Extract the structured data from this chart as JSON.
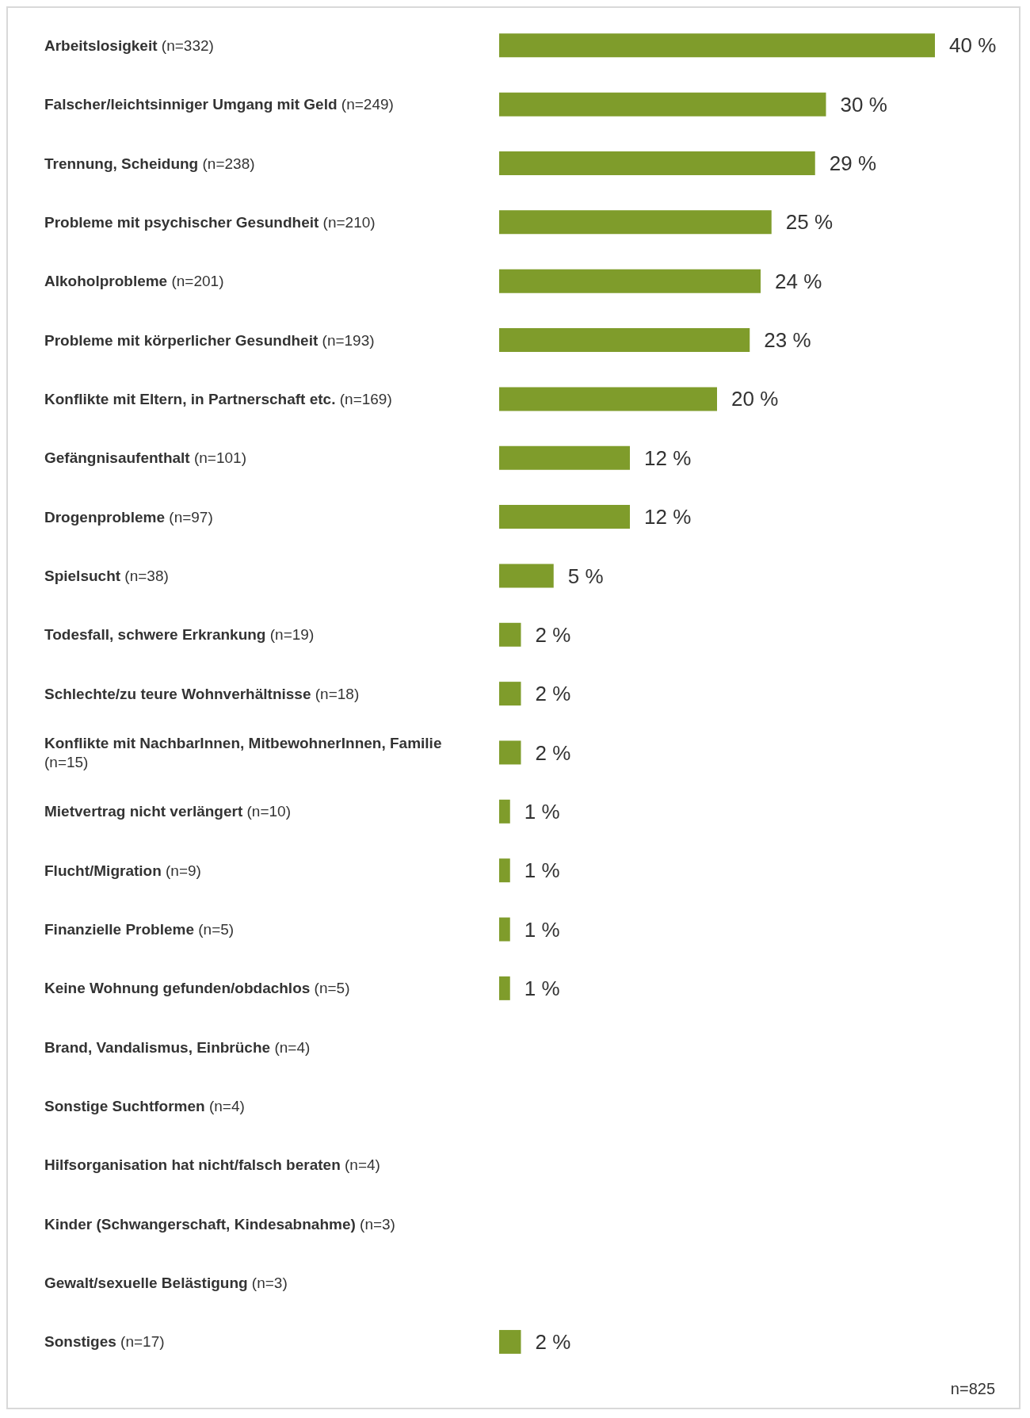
{
  "chart_data": {
    "type": "bar",
    "orientation": "horizontal",
    "categories": [
      "Arbeitslosigkeit (n=332)",
      "Falscher/leichtsinniger Umgang mit Geld (n=249)",
      "Trennung, Scheidung (n=238)",
      "Probleme mit psychischer Gesundheit (n=210)",
      "Alkoholprobleme (n=201)",
      "Probleme mit körperlicher Gesundheit (n=193)",
      "Konflikte mit Eltern, in Partnerschaft etc. (n=169)",
      "Gefängnisaufenthalt (n=101)",
      "Drogenprobleme (n=97)",
      "Spielsucht (n=38)",
      "Todesfall, schwere Erkrankung (n=19)",
      "Schlechte/zu teure Wohnverhältnisse (n=18)",
      "Konflikte mit NachbarInnen, MitbewohnerInnen, Familie (n=15)",
      "Mietvertrag nicht verlängert (n=10)",
      "Flucht/Migration (n=9)",
      "Finanzielle Probleme (n=5)",
      "Keine Wohnung gefunden/obdachlos (n=5)",
      "Brand, Vandalismus, Einbrüche (n=4)",
      "Sonstige Suchtformen (n=4)",
      "Hilfsorganisation hat nicht/falsch beraten (n=4)",
      "Kinder (Schwangerschaft, Kindesabnahme) (n=3)",
      "Gewalt/sexuelle Belästigung (n=3)",
      "Sonstiges (n=17)"
    ],
    "values": [
      40,
      30,
      29,
      25,
      24,
      23,
      20,
      12,
      12,
      5,
      2,
      2,
      2,
      1,
      1,
      1,
      1,
      null,
      null,
      null,
      null,
      null,
      2
    ],
    "value_labels": [
      "40 %",
      "30 %",
      "29 %",
      "25 %",
      "24 %",
      "23 %",
      "20 %",
      "12 %",
      "12 %",
      "5 %",
      "2 %",
      "2 %",
      "2 %",
      "1 %",
      "1 %",
      "1 %",
      "1 %",
      null,
      null,
      null,
      null,
      null,
      "2 %"
    ],
    "color": "#7f9c2b",
    "annotations": [
      "n=825"
    ]
  }
}
